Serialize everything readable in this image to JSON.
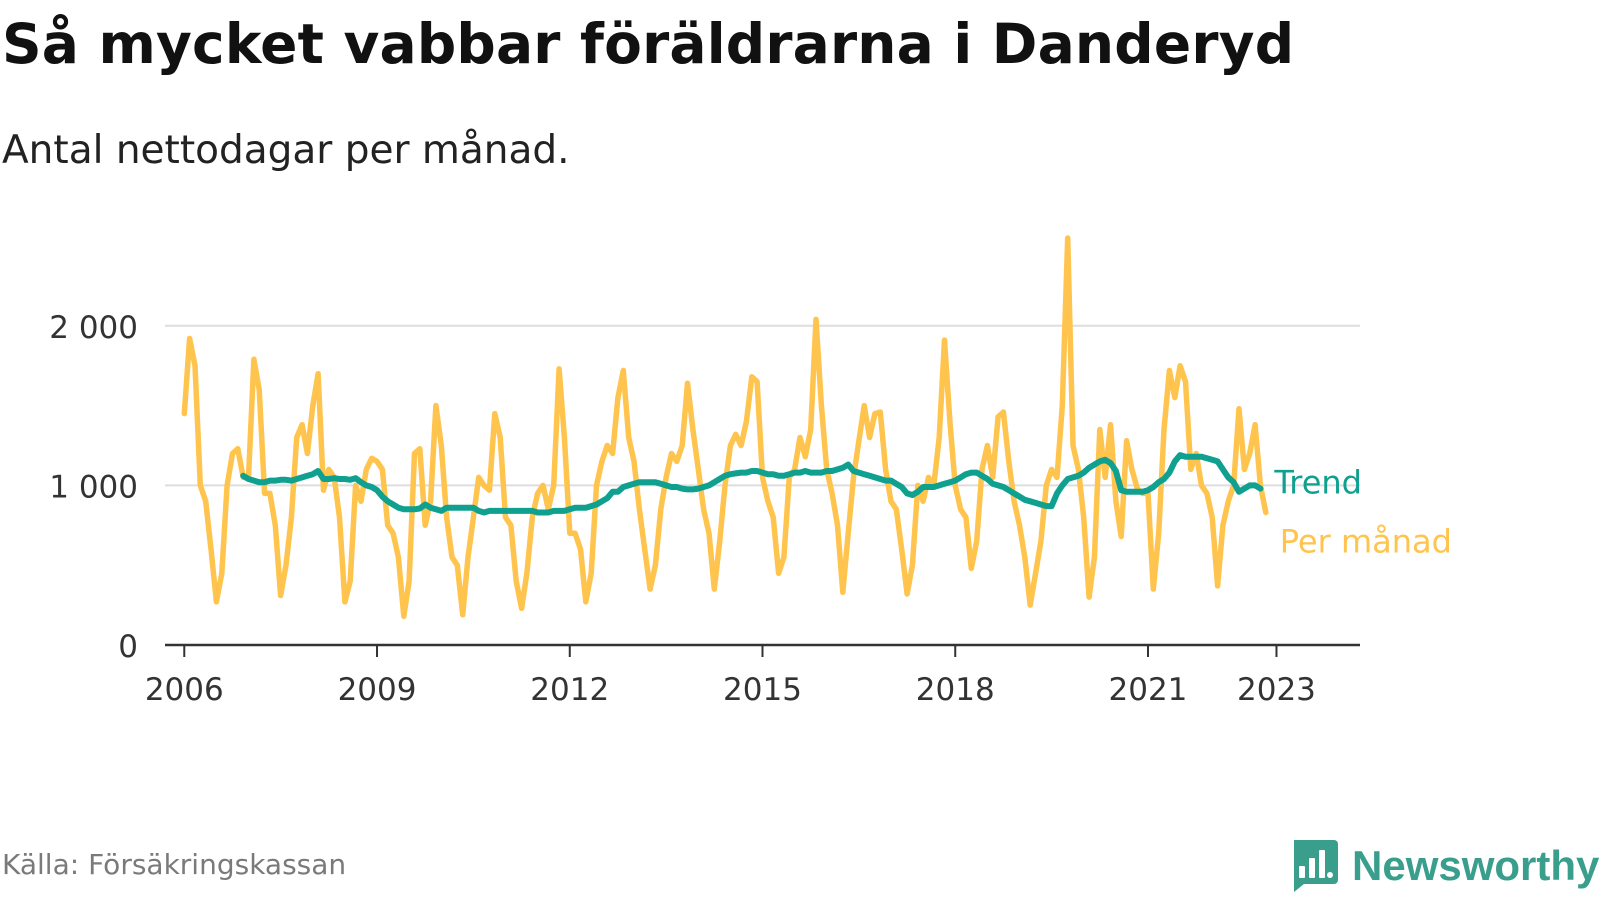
{
  "title": "Så mycket vabbar föräldrarna i Danderyd",
  "subtitle": "Antal nettodagar per månad.",
  "source": "Källa: Försäkringskassan",
  "brand": {
    "name": "Newsworthy",
    "icon": "newsworthy-logo-icon",
    "color": "#3a9e8c"
  },
  "chart_data": {
    "type": "line",
    "title": "",
    "xlabel": "",
    "ylabel": "",
    "ylim": [
      0,
      2600
    ],
    "xlim": [
      2005.7,
      2024.3
    ],
    "grid": "horizontal",
    "legend": "inline-right",
    "x_ticks": [
      2006,
      2009,
      2012,
      2015,
      2018,
      2021,
      2023
    ],
    "y_ticks": [
      0,
      1000,
      2000
    ],
    "y_tick_labels": [
      "0",
      "1 000",
      "2 000"
    ],
    "series": [
      {
        "name": "Per månad",
        "color": "#ffc44d",
        "x_start": "2006-01",
        "step": "month",
        "values": [
          1450,
          1920,
          1750,
          1000,
          900,
          600,
          270,
          450,
          1000,
          1200,
          1230,
          1050,
          1050,
          1790,
          1600,
          950,
          950,
          750,
          310,
          500,
          800,
          1300,
          1380,
          1200,
          1500,
          1700,
          970,
          1100,
          1050,
          800,
          270,
          400,
          1000,
          900,
          1100,
          1170,
          1150,
          1100,
          750,
          700,
          550,
          180,
          400,
          1200,
          1230,
          750,
          900,
          1500,
          1250,
          800,
          550,
          500,
          190,
          550,
          800,
          1050,
          1000,
          970,
          1450,
          1300,
          800,
          750,
          400,
          230,
          450,
          800,
          950,
          1000,
          850,
          1000,
          1730,
          1300,
          700,
          700,
          600,
          270,
          450,
          1000,
          1150,
          1250,
          1200,
          1550,
          1720,
          1300,
          1150,
          850,
          600,
          350,
          500,
          850,
          1050,
          1200,
          1150,
          1250,
          1640,
          1350,
          1100,
          850,
          700,
          350,
          650,
          1000,
          1250,
          1320,
          1250,
          1400,
          1680,
          1650,
          1050,
          900,
          800,
          450,
          550,
          1050,
          1100,
          1300,
          1180,
          1350,
          2040,
          1500,
          1100,
          950,
          750,
          330,
          700,
          1050,
          1280,
          1500,
          1300,
          1450,
          1460,
          1100,
          900,
          850,
          600,
          320,
          500,
          1000,
          900,
          1050,
          1000,
          1300,
          1910,
          1400,
          1000,
          850,
          800,
          480,
          650,
          1100,
          1250,
          1050,
          1430,
          1460,
          1150,
          900,
          750,
          550,
          250,
          450,
          650,
          1000,
          1100,
          1050,
          1500,
          2550,
          1250,
          1100,
          800,
          300,
          550,
          1350,
          1050,
          1380,
          900,
          680,
          1280,
          1100,
          980,
          950,
          950,
          350,
          700,
          1350,
          1720,
          1550,
          1750,
          1650,
          1100,
          1200,
          1000,
          950,
          800,
          370,
          750,
          900,
          1000,
          1480,
          1100,
          1200,
          1380,
          1000,
          830
        ]
      },
      {
        "name": "Trend",
        "color": "#0fa08f",
        "x_start": "2006-12",
        "step": "month",
        "values": [
          1060,
          1040,
          1030,
          1020,
          1020,
          1030,
          1030,
          1035,
          1035,
          1030,
          1040,
          1050,
          1060,
          1070,
          1090,
          1040,
          1040,
          1045,
          1040,
          1040,
          1035,
          1045,
          1020,
          1000,
          990,
          970,
          930,
          900,
          880,
          860,
          850,
          850,
          850,
          855,
          880,
          860,
          850,
          840,
          860,
          860,
          860,
          860,
          860,
          860,
          840,
          830,
          840,
          840,
          840,
          840,
          840,
          840,
          840,
          840,
          840,
          830,
          830,
          830,
          840,
          840,
          840,
          850,
          860,
          860,
          860,
          870,
          880,
          900,
          920,
          960,
          960,
          990,
          1000,
          1010,
          1020,
          1020,
          1020,
          1020,
          1010,
          1000,
          990,
          990,
          980,
          975,
          975,
          980,
          990,
          1000,
          1020,
          1040,
          1060,
          1070,
          1075,
          1080,
          1080,
          1090,
          1090,
          1080,
          1070,
          1070,
          1060,
          1060,
          1070,
          1080,
          1080,
          1090,
          1080,
          1080,
          1080,
          1090,
          1090,
          1100,
          1110,
          1130,
          1090,
          1080,
          1070,
          1060,
          1050,
          1040,
          1030,
          1030,
          1010,
          990,
          950,
          940,
          960,
          990,
          990,
          990,
          1000,
          1010,
          1020,
          1030,
          1050,
          1070,
          1080,
          1080,
          1060,
          1040,
          1010,
          1000,
          990,
          970,
          950,
          930,
          910,
          900,
          890,
          880,
          870,
          870,
          950,
          1000,
          1040,
          1050,
          1060,
          1080,
          1110,
          1130,
          1150,
          1160,
          1140,
          1090,
          970,
          960,
          960,
          960,
          960,
          970,
          990,
          1020,
          1040,
          1080,
          1150,
          1190,
          1180,
          1180,
          1180,
          1180,
          1170,
          1160,
          1150,
          1100,
          1050,
          1020,
          960,
          980,
          1000,
          1000,
          980
        ]
      }
    ]
  }
}
